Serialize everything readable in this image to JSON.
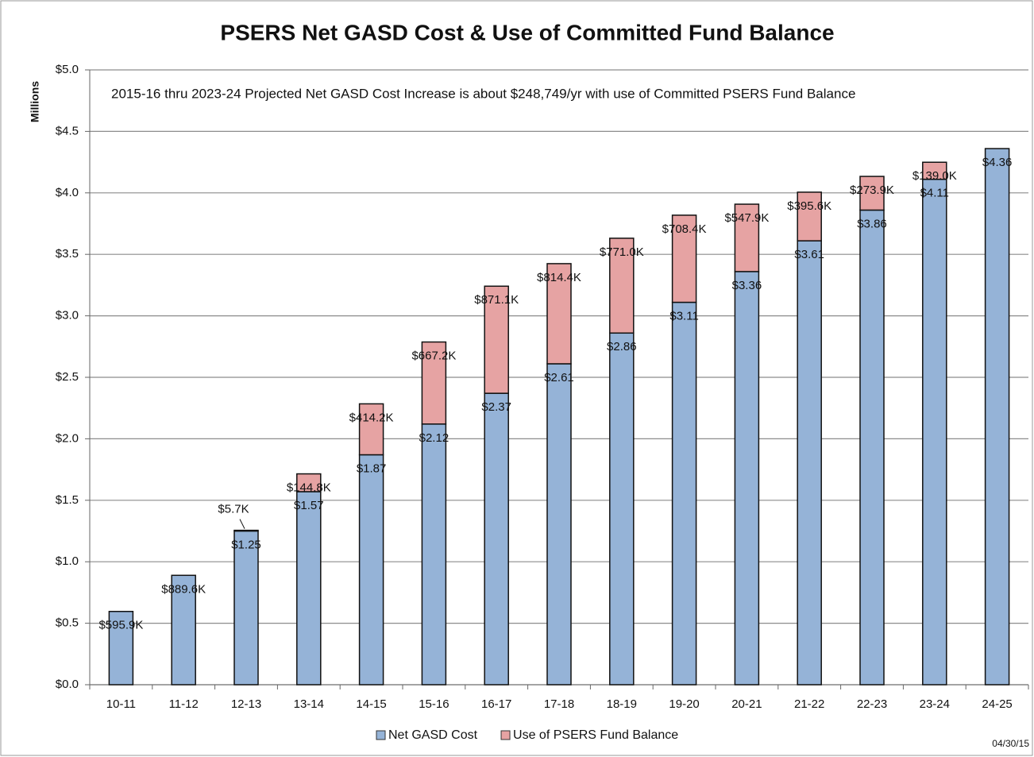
{
  "chart_data": {
    "type": "bar",
    "stacked": true,
    "title": "PSERS Net GASD Cost & Use of Committed Fund Balance",
    "annotation": "2015-16 thru 2023-24 Projected Net GASD Cost Increase is about $248,749/yr with use of Committed PSERS Fund Balance",
    "y_label": "Millions",
    "footnote": "04/30/15",
    "categories": [
      "10-11",
      "11-12",
      "12-13",
      "13-14",
      "14-15",
      "15-16",
      "16-17",
      "17-18",
      "18-19",
      "19-20",
      "20-21",
      "21-22",
      "22-23",
      "23-24",
      "24-25"
    ],
    "series": [
      {
        "name": "Net GASD Cost",
        "color": "#95b3d7",
        "values": [
          0.5959,
          0.8896,
          1.25,
          1.57,
          1.87,
          2.12,
          2.37,
          2.61,
          2.86,
          3.11,
          3.36,
          3.61,
          3.86,
          4.11,
          4.36
        ],
        "value_labels": [
          "$595.9K",
          "$889.6K",
          "$1.25",
          "$1.57",
          "$1.87",
          "$2.12",
          "$2.37",
          "$2.61",
          "$2.86",
          "$3.11",
          "$3.36",
          "$3.61",
          "$3.86",
          "$4.11",
          "$4.36"
        ]
      },
      {
        "name": "Use of PSERS Fund Balance",
        "color": "#e6a3a3",
        "values": [
          null,
          null,
          0.0057,
          0.1448,
          0.4142,
          0.6672,
          0.8711,
          0.8144,
          0.771,
          0.7084,
          0.5479,
          0.3956,
          0.2739,
          0.139,
          null
        ],
        "value_labels": [
          null,
          null,
          "$5.7K",
          "$144.8K",
          "$414.2K",
          "$667.2K",
          "$871.1K",
          "$814.4K",
          "$771.0K",
          "$708.4K",
          "$547.9K",
          "$395.6K",
          "$273.9K",
          "$139.0K",
          null
        ]
      }
    ],
    "ylim": [
      0,
      5
    ],
    "yticks": [
      {
        "value": 0,
        "label": "$0.0"
      },
      {
        "value": 0.5,
        "label": "$0.5"
      },
      {
        "value": 1,
        "label": "$1.0"
      },
      {
        "value": 1.5,
        "label": "$1.5"
      },
      {
        "value": 2,
        "label": "$2.0"
      },
      {
        "value": 2.5,
        "label": "$2.5"
      },
      {
        "value": 3,
        "label": "$3.0"
      },
      {
        "value": 3.5,
        "label": "$3.5"
      },
      {
        "value": 4,
        "label": "$4.0"
      },
      {
        "value": 4.5,
        "label": "$4.5"
      },
      {
        "value": 5,
        "label": "$5.0"
      }
    ],
    "grid": true,
    "legend": "bottom"
  }
}
